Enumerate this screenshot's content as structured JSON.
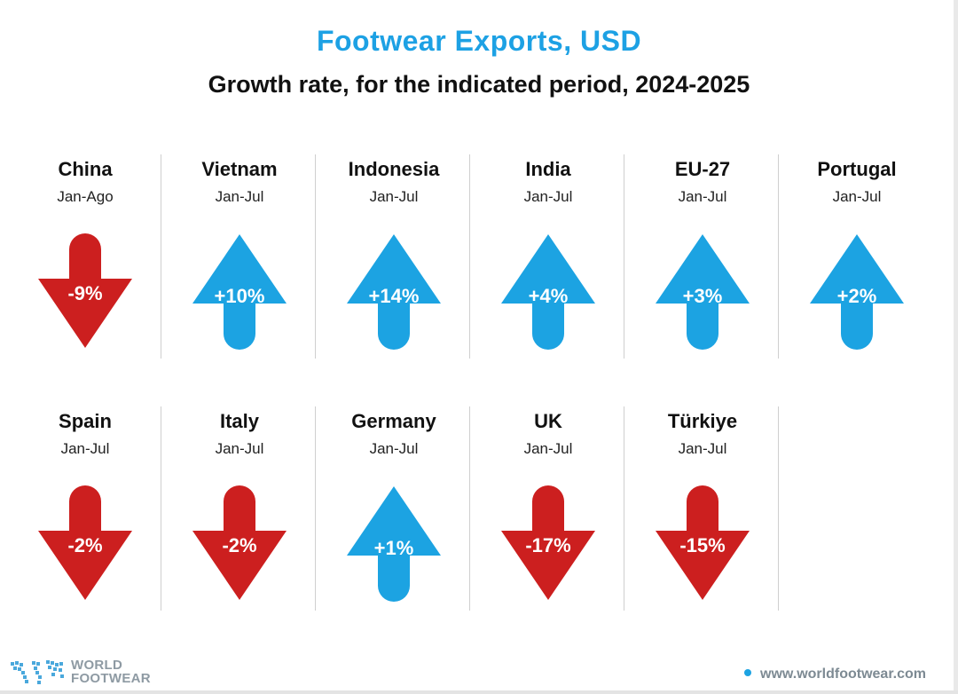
{
  "header": {
    "title": "Footwear Exports, USD",
    "subtitle": "Growth rate, for the indicated period, 2024-2025"
  },
  "colors": {
    "title": "#1da1e4",
    "up": "#1ca3e2",
    "down": "#cc1f1f",
    "divider": "#cfcfcf"
  },
  "chart_data": {
    "type": "table",
    "title": "Footwear Exports, USD",
    "subtitle": "Growth rate, for the indicated period, 2024-2025",
    "unit": "%",
    "items": [
      {
        "country": "China",
        "period": "Jan-Ago",
        "value": -9,
        "label": "-9%",
        "direction": "down"
      },
      {
        "country": "Vietnam",
        "period": "Jan-Jul",
        "value": 10,
        "label": "+10%",
        "direction": "up"
      },
      {
        "country": "Indonesia",
        "period": "Jan-Jul",
        "value": 14,
        "label": "+14%",
        "direction": "up"
      },
      {
        "country": "India",
        "period": "Jan-Jul",
        "value": 4,
        "label": "+4%",
        "direction": "up"
      },
      {
        "country": "EU-27",
        "period": "Jan-Jul",
        "value": 3,
        "label": "+3%",
        "direction": "up"
      },
      {
        "country": "Portugal",
        "period": "Jan-Jul",
        "value": 2,
        "label": "+2%",
        "direction": "up"
      },
      {
        "country": "Spain",
        "period": "Jan-Jul",
        "value": -2,
        "label": "-2%",
        "direction": "down"
      },
      {
        "country": "Italy",
        "period": "Jan-Jul",
        "value": -2,
        "label": "-2%",
        "direction": "down"
      },
      {
        "country": "Germany",
        "period": "Jan-Jul",
        "value": 1,
        "label": "+1%",
        "direction": "up"
      },
      {
        "country": "UK",
        "period": "Jan-Jul",
        "value": -17,
        "label": "-17%",
        "direction": "down"
      },
      {
        "country": "Türkiye",
        "period": "Jan-Jul",
        "value": -15,
        "label": "-15%",
        "direction": "down"
      }
    ]
  },
  "footer": {
    "logo_line1": "WORLD",
    "logo_line2": "FOOTWEAR",
    "website": "www.worldfootwear.com"
  }
}
